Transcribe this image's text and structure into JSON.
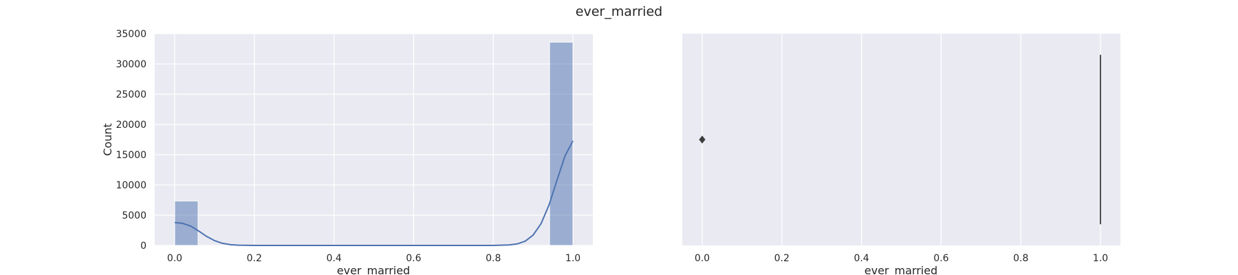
{
  "figure": {
    "suptitle": "ever_married"
  },
  "chart_data": [
    {
      "type": "histogram",
      "xlabel": "ever_married",
      "ylabel": "Count",
      "xlim": [
        -0.05,
        1.05
      ],
      "ylim": [
        0,
        35000
      ],
      "xticks": [
        "0.0",
        "0.2",
        "0.4",
        "0.6",
        "0.8",
        "1.0"
      ],
      "yticks": [
        "0",
        "5000",
        "10000",
        "15000",
        "20000",
        "25000",
        "30000",
        "35000"
      ],
      "bins": [
        {
          "x0": 0.0,
          "x1": 0.0588,
          "count": 7350
        },
        {
          "x0": 0.9412,
          "x1": 1.0,
          "count": 33600
        }
      ],
      "bar_color": "#4c72b0",
      "kde": {
        "color": "#4c72b0",
        "x": [
          0.0,
          0.02,
          0.04,
          0.06,
          0.08,
          0.1,
          0.12,
          0.14,
          0.16,
          0.2,
          0.3,
          0.5,
          0.7,
          0.8,
          0.84,
          0.86,
          0.88,
          0.9,
          0.92,
          0.94,
          0.96,
          0.98,
          1.0
        ],
        "y": [
          3800,
          3650,
          3200,
          2400,
          1500,
          800,
          350,
          130,
          40,
          0,
          0,
          0,
          0,
          0,
          80,
          250,
          700,
          1700,
          3600,
          6700,
          10800,
          14800,
          17300
        ]
      },
      "grid": true
    },
    {
      "type": "boxplot",
      "xlabel": "ever_married",
      "xlim": [
        -0.05,
        1.05
      ],
      "xticks": [
        "0.0",
        "0.2",
        "0.4",
        "0.6",
        "0.8",
        "1.0"
      ],
      "box": {
        "q1": 1.0,
        "median": 1.0,
        "q3": 1.0,
        "whisker_low": 1.0,
        "whisker_high": 1.0
      },
      "outliers": [
        0.0
      ],
      "grid": true
    }
  ]
}
